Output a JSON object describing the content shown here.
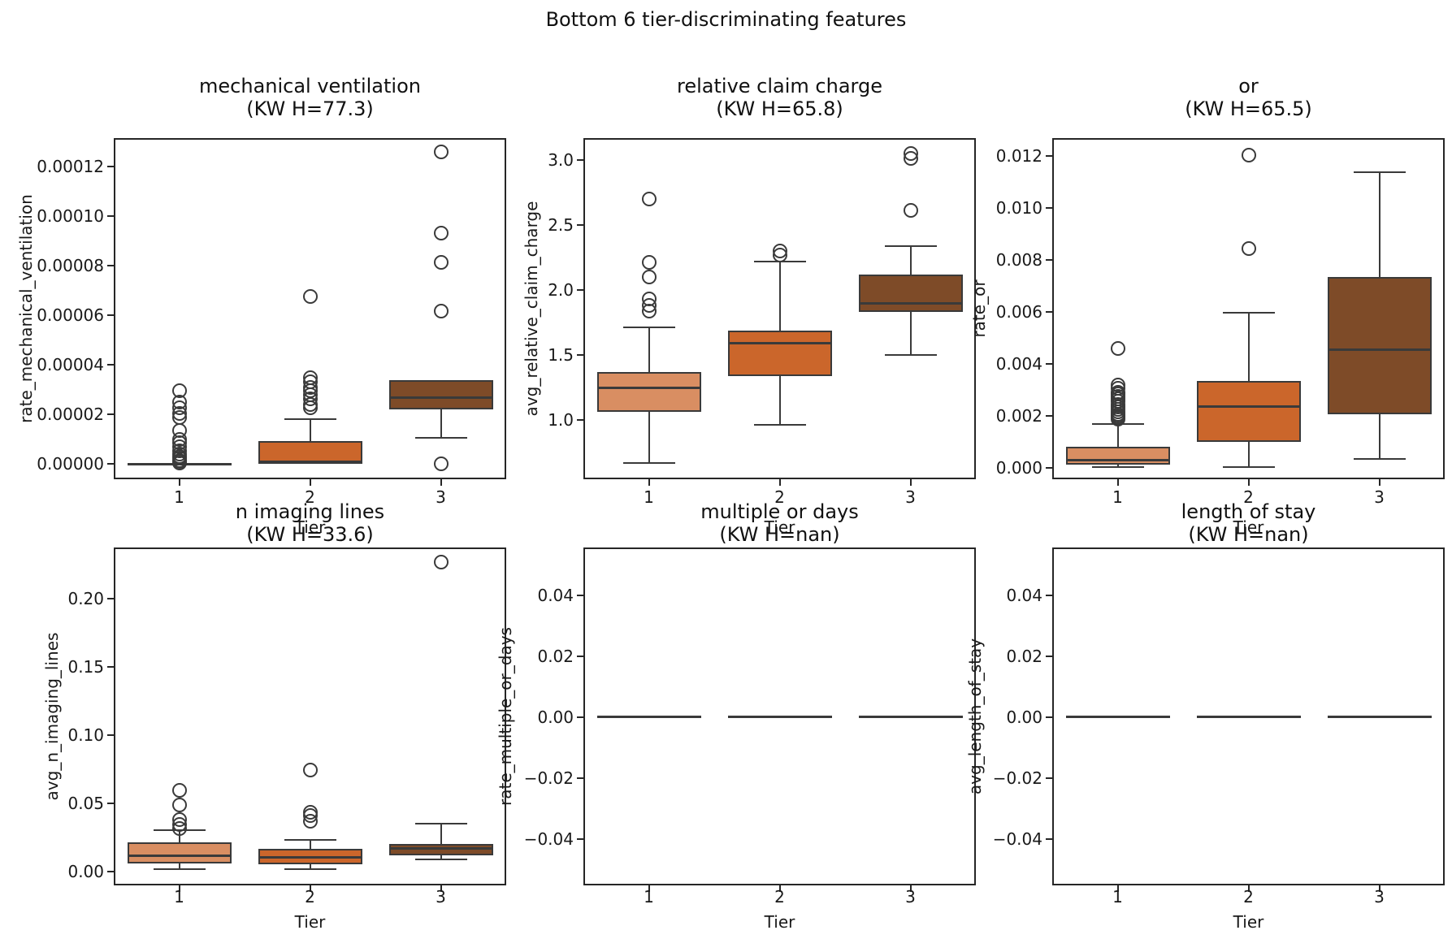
{
  "figure": {
    "suptitle": "Bottom 6 tier-discriminating features",
    "colors": {
      "tier1": "#d98e62",
      "tier2": "#cb662b",
      "tier3": "#7e4b28",
      "line": "#3a3a3a",
      "spine": "#262626",
      "text": "#191919",
      "background": "#ffffff"
    }
  },
  "chart_data": [
    {
      "type": "box",
      "title": "mechanical ventilation",
      "subtitle": "(KW H=77.3)",
      "ylabel": "rate_mechanical_ventilation",
      "xlabel": "Tier",
      "categories": [
        "1",
        "2",
        "3"
      ],
      "ylim": [
        -6.2e-06,
        0.0001315
      ],
      "yticks": [
        {
          "v": 0.0,
          "label": "0.00000"
        },
        {
          "v": 2e-05,
          "label": "0.00002"
        },
        {
          "v": 4e-05,
          "label": "0.00004"
        },
        {
          "v": 6e-05,
          "label": "0.00006"
        },
        {
          "v": 8e-05,
          "label": "0.00008"
        },
        {
          "v": 0.0001,
          "label": "0.00010"
        },
        {
          "v": 0.00012,
          "label": "0.00012"
        }
      ],
      "boxes": [
        {
          "category": "1",
          "whislo": 0.0,
          "q1": 0.0,
          "med": 0.0,
          "q3": 0.0,
          "whishi": 0.0,
          "fliers": [
            2.95e-05,
            2.5e-05,
            2.25e-05,
            2.05e-05,
            1.88e-05,
            1.35e-05,
            1e-05,
            8.5e-06,
            6.8e-06,
            5.2e-06,
            4e-06,
            3e-06,
            2.2e-06,
            1.5e-06,
            9e-07,
            4e-07
          ]
        },
        {
          "category": "2",
          "whislo": 0.0,
          "q1": 0.0,
          "med": 1e-06,
          "q3": 9.2e-06,
          "whishi": 1.8e-05,
          "fliers": [
            6.75e-05,
            3.48e-05,
            3.3e-05,
            3.1e-05,
            2.95e-05,
            2.8e-05,
            2.62e-05,
            2.4e-05,
            2.28e-05
          ]
        },
        {
          "category": "3",
          "whislo": 1.05e-05,
          "q1": 2.2e-05,
          "med": 2.66e-05,
          "q3": 3.38e-05,
          "whishi": 3.38e-05,
          "fliers": [
            0.000126,
            9.31e-05,
            8.13e-05,
            6.16e-05,
            0.0
          ]
        }
      ]
    },
    {
      "type": "box",
      "title": "relative claim charge",
      "subtitle": "(KW H=65.8)",
      "ylabel": "avg_relative_claim_charge",
      "xlabel": "Tier",
      "categories": [
        "1",
        "2",
        "3"
      ],
      "ylim": [
        0.544,
        3.169
      ],
      "yticks": [
        {
          "v": 1.0,
          "label": "1.0"
        },
        {
          "v": 1.5,
          "label": "1.5"
        },
        {
          "v": 2.0,
          "label": "2.0"
        },
        {
          "v": 2.5,
          "label": "2.5"
        },
        {
          "v": 3.0,
          "label": "3.0"
        }
      ],
      "boxes": [
        {
          "category": "1",
          "whislo": 0.67,
          "q1": 1.06,
          "med": 1.25,
          "q3": 1.37,
          "whishi": 1.71,
          "fliers": [
            2.7,
            2.21,
            2.1,
            1.93,
            1.88,
            1.84
          ]
        },
        {
          "category": "2",
          "whislo": 0.96,
          "q1": 1.34,
          "med": 1.59,
          "q3": 1.69,
          "whishi": 2.22,
          "fliers": [
            2.3,
            2.27
          ]
        },
        {
          "category": "3",
          "whislo": 1.5,
          "q1": 1.83,
          "med": 1.9,
          "q3": 2.12,
          "whishi": 2.34,
          "fliers": [
            3.05,
            3.01,
            2.61
          ]
        }
      ]
    },
    {
      "type": "box",
      "title": "or",
      "subtitle": "(KW H=65.5)",
      "ylabel": "rate_or",
      "xlabel": "Tier",
      "categories": [
        "1",
        "2",
        "3"
      ],
      "ylim": [
        -0.000437,
        0.012691
      ],
      "yticks": [
        {
          "v": 0.0,
          "label": "0.000"
        },
        {
          "v": 0.002,
          "label": "0.002"
        },
        {
          "v": 0.004,
          "label": "0.004"
        },
        {
          "v": 0.006,
          "label": "0.006"
        },
        {
          "v": 0.008,
          "label": "0.008"
        },
        {
          "v": 0.01,
          "label": "0.010"
        },
        {
          "v": 0.012,
          "label": "0.012"
        }
      ],
      "boxes": [
        {
          "category": "1",
          "whislo": 2e-05,
          "q1": 0.00013,
          "med": 0.0003,
          "q3": 0.00082,
          "whishi": 0.00168,
          "fliers": [
            0.0046,
            0.0032,
            0.00305,
            0.0029,
            0.00285,
            0.00275,
            0.00265,
            0.00255,
            0.00245,
            0.00235,
            0.00225,
            0.00215,
            0.00207,
            0.002,
            0.00193,
            0.00187
          ]
        },
        {
          "category": "2",
          "whislo": 2e-05,
          "q1": 0.001,
          "med": 0.00235,
          "q3": 0.00335,
          "whishi": 0.00597,
          "fliers": [
            0.01203,
            0.00843
          ]
        },
        {
          "category": "3",
          "whislo": 0.00035,
          "q1": 0.00205,
          "med": 0.00455,
          "q3": 0.00735,
          "whishi": 0.01138,
          "fliers": []
        }
      ]
    },
    {
      "type": "box",
      "title": "n imaging lines",
      "subtitle": "(KW H=33.6)",
      "ylabel": "avg_n_imaging_lines",
      "xlabel": "Tier",
      "categories": [
        "1",
        "2",
        "3"
      ],
      "ylim": [
        -0.0101,
        0.2375
      ],
      "yticks": [
        {
          "v": 0.0,
          "label": "0.00"
        },
        {
          "v": 0.05,
          "label": "0.05"
        },
        {
          "v": 0.1,
          "label": "0.10"
        },
        {
          "v": 0.15,
          "label": "0.15"
        },
        {
          "v": 0.2,
          "label": "0.20"
        }
      ],
      "boxes": [
        {
          "category": "1",
          "whislo": 0.002,
          "q1": 0.0062,
          "med": 0.0118,
          "q3": 0.0214,
          "whishi": 0.0302,
          "fliers": [
            0.0595,
            0.0488,
            0.0383,
            0.0345,
            0.0317
          ]
        },
        {
          "category": "2",
          "whislo": 0.002,
          "q1": 0.0052,
          "med": 0.0105,
          "q3": 0.0167,
          "whishi": 0.0232,
          "fliers": [
            0.0743,
            0.0436,
            0.0411,
            0.0367
          ]
        },
        {
          "category": "3",
          "whislo": 0.0088,
          "q1": 0.0118,
          "med": 0.017,
          "q3": 0.02,
          "whishi": 0.0352,
          "fliers": [
            0.2268
          ]
        }
      ]
    },
    {
      "type": "box",
      "title": "multiple or days",
      "subtitle": "(KW H=nan)",
      "ylabel": "rate_multiple_or_days",
      "xlabel": "Tier",
      "categories": [
        "1",
        "2",
        "3"
      ],
      "ylim": [
        -0.0551,
        0.0556
      ],
      "yticks": [
        {
          "v": -0.04,
          "label": "−0.04"
        },
        {
          "v": -0.02,
          "label": "−0.02"
        },
        {
          "v": 0.0,
          "label": "0.00"
        },
        {
          "v": 0.02,
          "label": "0.02"
        },
        {
          "v": 0.04,
          "label": "0.04"
        }
      ],
      "boxes": [
        {
          "category": "1",
          "whislo": 0.0,
          "q1": 0.0,
          "med": 0.0,
          "q3": 0.0,
          "whishi": 0.0,
          "fliers": []
        },
        {
          "category": "2",
          "whislo": 0.0,
          "q1": 0.0,
          "med": 0.0,
          "q3": 0.0,
          "whishi": 0.0,
          "fliers": []
        },
        {
          "category": "3",
          "whislo": 0.0,
          "q1": 0.0,
          "med": 0.0,
          "q3": 0.0,
          "whishi": 0.0,
          "fliers": []
        }
      ]
    },
    {
      "type": "box",
      "title": "length of stay",
      "subtitle": "(KW H=nan)",
      "ylabel": "avg_length_of_stay",
      "xlabel": "Tier",
      "categories": [
        "1",
        "2",
        "3"
      ],
      "ylim": [
        -0.0551,
        0.0556
      ],
      "yticks": [
        {
          "v": -0.04,
          "label": "−0.04"
        },
        {
          "v": -0.02,
          "label": "−0.02"
        },
        {
          "v": 0.0,
          "label": "0.00"
        },
        {
          "v": 0.02,
          "label": "0.02"
        },
        {
          "v": 0.04,
          "label": "0.04"
        }
      ],
      "boxes": [
        {
          "category": "1",
          "whislo": 0.0,
          "q1": 0.0,
          "med": 0.0,
          "q3": 0.0,
          "whishi": 0.0,
          "fliers": []
        },
        {
          "category": "2",
          "whislo": 0.0,
          "q1": 0.0,
          "med": 0.0,
          "q3": 0.0,
          "whishi": 0.0,
          "fliers": []
        },
        {
          "category": "3",
          "whislo": 0.0,
          "q1": 0.0,
          "med": 0.0,
          "q3": 0.0,
          "whishi": 0.0,
          "fliers": []
        }
      ]
    }
  ]
}
